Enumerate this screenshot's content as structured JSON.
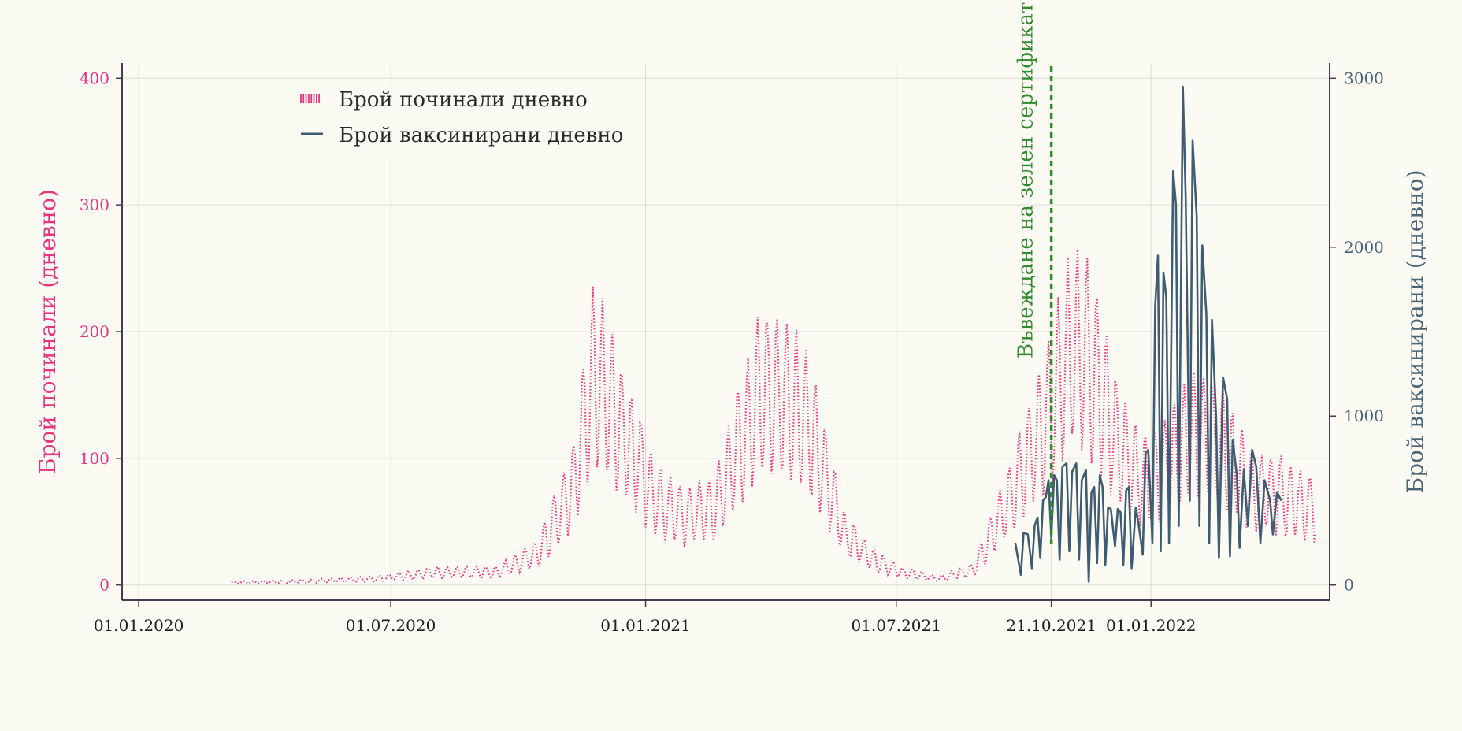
{
  "chart_data": {
    "type": "line",
    "x_ticks": [
      "01.01.2020",
      "01.07.2020",
      "01.01.2021",
      "01.07.2021",
      "21.10.2021",
      "01.01.2022"
    ],
    "x_range": [
      "2019-12-20",
      "2022-05-10"
    ],
    "y_left": {
      "label": "Брой починали (дневно)",
      "ticks": [
        "0",
        "100",
        "200",
        "300",
        "400"
      ],
      "range": [
        -12,
        412
      ],
      "color": "#e8337f"
    },
    "y_right": {
      "label": "Брой ваксинирани (дневно)",
      "ticks": [
        "0",
        "1000",
        "2000",
        "3000"
      ],
      "range": [
        -90,
        3090
      ],
      "color": "#4a6478"
    },
    "grid": true,
    "legend_position": "top-left",
    "annotation": {
      "text": "Въвеждане на зелен сертификат",
      "date": "2021-10-21",
      "color": "#2e8b2e"
    },
    "series": [
      {
        "name": "Брой починали дневно",
        "axis": "left",
        "style": "dotted",
        "color": "#e8337f",
        "start": "2020-03-08",
        "end": "2022-04-30",
        "envelope": [
          [
            "2020-03-08",
            2
          ],
          [
            "2020-05-01",
            3
          ],
          [
            "2020-06-20",
            5
          ],
          [
            "2020-08-01",
            10
          ],
          [
            "2020-09-15",
            10
          ],
          [
            "2020-10-15",
            25
          ],
          [
            "2020-11-10",
            80
          ],
          [
            "2020-11-25",
            170
          ],
          [
            "2020-12-05",
            145
          ],
          [
            "2020-12-20",
            110
          ],
          [
            "2021-01-10",
            65
          ],
          [
            "2021-02-01",
            55
          ],
          [
            "2021-02-20",
            60
          ],
          [
            "2021-03-10",
            115
          ],
          [
            "2021-03-25",
            150
          ],
          [
            "2021-04-10",
            150
          ],
          [
            "2021-04-25",
            135
          ],
          [
            "2021-05-10",
            90
          ],
          [
            "2021-05-25",
            40
          ],
          [
            "2021-06-15",
            20
          ],
          [
            "2021-07-05",
            10
          ],
          [
            "2021-08-01",
            5
          ],
          [
            "2021-08-25",
            12
          ],
          [
            "2021-09-15",
            55
          ],
          [
            "2021-10-01",
            90
          ],
          [
            "2021-10-21",
            140
          ],
          [
            "2021-11-05",
            190
          ],
          [
            "2021-11-20",
            175
          ],
          [
            "2021-12-05",
            120
          ],
          [
            "2021-12-25",
            80
          ],
          [
            "2022-01-10",
            90
          ],
          [
            "2022-02-01",
            120
          ],
          [
            "2022-02-20",
            110
          ],
          [
            "2022-03-15",
            75
          ],
          [
            "2022-04-05",
            70
          ],
          [
            "2022-04-30",
            60
          ]
        ]
      },
      {
        "name": "Брой ваксинирани дневно",
        "axis": "right",
        "style": "solid",
        "color": "#3f5c72",
        "points": [
          [
            "2021-09-25",
            250
          ],
          [
            "2021-09-29",
            60
          ],
          [
            "2021-10-01",
            310
          ],
          [
            "2021-10-04",
            300
          ],
          [
            "2021-10-07",
            100
          ],
          [
            "2021-10-09",
            350
          ],
          [
            "2021-10-11",
            400
          ],
          [
            "2021-10-13",
            160
          ],
          [
            "2021-10-15",
            500
          ],
          [
            "2021-10-17",
            520
          ],
          [
            "2021-10-19",
            620
          ],
          [
            "2021-10-21",
            280
          ],
          [
            "2021-10-23",
            650
          ],
          [
            "2021-10-25",
            620
          ],
          [
            "2021-10-27",
            150
          ],
          [
            "2021-10-29",
            700
          ],
          [
            "2021-11-01",
            720
          ],
          [
            "2021-11-03",
            200
          ],
          [
            "2021-11-05",
            670
          ],
          [
            "2021-11-08",
            720
          ],
          [
            "2021-11-10",
            150
          ],
          [
            "2021-11-12",
            620
          ],
          [
            "2021-11-15",
            680
          ],
          [
            "2021-11-17",
            20
          ],
          [
            "2021-11-19",
            550
          ],
          [
            "2021-11-21",
            580
          ],
          [
            "2021-11-23",
            130
          ],
          [
            "2021-11-25",
            650
          ],
          [
            "2021-11-27",
            580
          ],
          [
            "2021-11-29",
            120
          ],
          [
            "2021-12-01",
            460
          ],
          [
            "2021-12-03",
            450
          ],
          [
            "2021-12-06",
            230
          ],
          [
            "2021-12-08",
            450
          ],
          [
            "2021-12-10",
            430
          ],
          [
            "2021-12-12",
            120
          ],
          [
            "2021-12-14",
            560
          ],
          [
            "2021-12-16",
            580
          ],
          [
            "2021-12-18",
            100
          ],
          [
            "2021-12-21",
            460
          ],
          [
            "2021-12-23",
            360
          ],
          [
            "2021-12-26",
            180
          ],
          [
            "2021-12-28",
            780
          ],
          [
            "2021-12-30",
            800
          ],
          [
            "2022-01-02",
            250
          ],
          [
            "2022-01-04",
            1650
          ],
          [
            "2022-01-06",
            1950
          ],
          [
            "2022-01-08",
            200
          ],
          [
            "2022-01-10",
            1850
          ],
          [
            "2022-01-12",
            1700
          ],
          [
            "2022-01-14",
            250
          ],
          [
            "2022-01-17",
            2450
          ],
          [
            "2022-01-19",
            2250
          ],
          [
            "2022-01-21",
            350
          ],
          [
            "2022-01-24",
            2950
          ],
          [
            "2022-01-26",
            2300
          ],
          [
            "2022-01-29",
            500
          ],
          [
            "2022-01-31",
            2630
          ],
          [
            "2022-02-03",
            2180
          ],
          [
            "2022-02-05",
            350
          ],
          [
            "2022-02-07",
            2010
          ],
          [
            "2022-02-10",
            1600
          ],
          [
            "2022-02-12",
            250
          ],
          [
            "2022-02-14",
            1570
          ],
          [
            "2022-02-17",
            1000
          ],
          [
            "2022-02-19",
            160
          ],
          [
            "2022-02-22",
            1230
          ],
          [
            "2022-02-25",
            1100
          ],
          [
            "2022-02-27",
            170
          ],
          [
            "2022-03-01",
            860
          ],
          [
            "2022-03-04",
            650
          ],
          [
            "2022-03-06",
            220
          ],
          [
            "2022-03-09",
            680
          ],
          [
            "2022-03-12",
            350
          ],
          [
            "2022-03-15",
            800
          ],
          [
            "2022-03-18",
            700
          ],
          [
            "2022-03-21",
            250
          ],
          [
            "2022-03-24",
            620
          ],
          [
            "2022-03-28",
            500
          ],
          [
            "2022-03-30",
            300
          ],
          [
            "2022-04-02",
            550
          ],
          [
            "2022-04-05",
            500
          ]
        ]
      }
    ]
  }
}
